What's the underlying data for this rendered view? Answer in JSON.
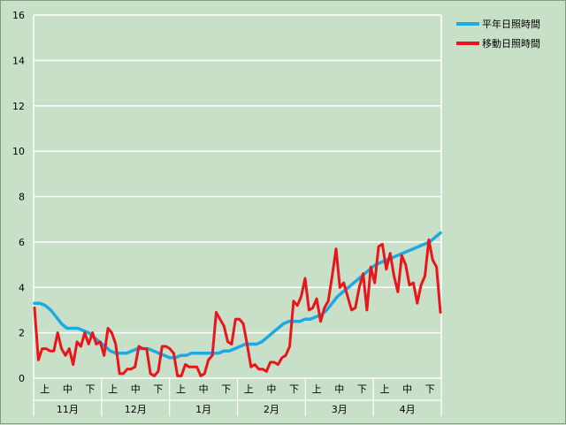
{
  "chart_data": {
    "type": "line",
    "ylim": [
      0,
      16
    ],
    "yticks": [
      0,
      2,
      4,
      6,
      8,
      10,
      12,
      14,
      16
    ],
    "grid": "horizontal",
    "legend_position": "top-right",
    "x_sub_labels": [
      "上",
      "中",
      "下",
      "上",
      "中",
      "下",
      "上",
      "中",
      "下",
      "上",
      "中",
      "下",
      "上",
      "中",
      "下",
      "上",
      "中",
      "下"
    ],
    "x_month_labels": [
      "11月",
      "12月",
      "1月",
      "2月",
      "3月",
      "4月"
    ],
    "series": [
      {
        "name": "平年日照時間",
        "color": "#1fa9e1",
        "values": [
          3.3,
          3.3,
          3.2,
          3.0,
          2.7,
          2.4,
          2.2,
          2.2,
          2.2,
          2.1,
          2.0,
          1.8,
          1.6,
          1.4,
          1.2,
          1.1,
          1.1,
          1.1,
          1.2,
          1.3,
          1.3,
          1.3,
          1.2,
          1.1,
          1.0,
          0.9,
          0.9,
          1.0,
          1.0,
          1.1,
          1.1,
          1.1,
          1.1,
          1.1,
          1.1,
          1.2,
          1.2,
          1.3,
          1.4,
          1.5,
          1.5,
          1.5,
          1.6,
          1.8,
          2.0,
          2.2,
          2.4,
          2.5,
          2.5,
          2.5,
          2.6,
          2.6,
          2.7,
          2.8,
          3.0,
          3.3,
          3.6,
          3.8,
          4.0,
          4.2,
          4.4,
          4.6,
          4.8,
          5.0,
          5.1,
          5.2,
          5.3,
          5.4,
          5.5,
          5.6,
          5.7,
          5.8,
          5.9,
          6.0,
          6.2,
          6.4
        ]
      },
      {
        "name": "移動日照時間",
        "color": "#e8151a",
        "values": [
          3.1,
          0.8,
          1.3,
          1.3,
          1.2,
          1.2,
          2.0,
          1.3,
          1.0,
          1.3,
          0.6,
          1.6,
          1.4,
          2.0,
          1.5,
          2.0,
          1.5,
          1.6,
          1.0,
          2.2,
          2.0,
          1.5,
          0.2,
          0.2,
          0.4,
          0.4,
          0.5,
          1.4,
          1.3,
          1.3,
          0.2,
          0.1,
          0.3,
          1.4,
          1.4,
          1.3,
          1.1,
          0.1,
          0.1,
          0.6,
          0.5,
          0.5,
          0.5,
          0.1,
          0.2,
          0.8,
          1.0,
          2.9,
          2.6,
          2.3,
          1.6,
          1.5,
          2.6,
          2.6,
          2.4,
          1.5,
          0.5,
          0.6,
          0.4,
          0.4,
          0.3,
          0.7,
          0.7,
          0.6,
          0.9,
          1.0,
          1.4,
          3.4,
          3.2,
          3.6,
          4.4,
          3.0,
          3.1,
          3.5,
          2.5,
          3.1,
          3.4,
          4.5,
          5.7,
          4.0,
          4.2,
          3.6,
          3.0,
          3.1,
          4.0,
          4.6,
          3.0,
          4.9,
          4.2,
          5.8,
          5.9,
          4.8,
          5.5,
          4.5,
          3.8,
          5.4,
          5.0,
          4.1,
          4.2,
          3.3,
          4.1,
          4.5,
          6.1,
          5.2,
          4.9,
          2.9
        ]
      }
    ]
  }
}
